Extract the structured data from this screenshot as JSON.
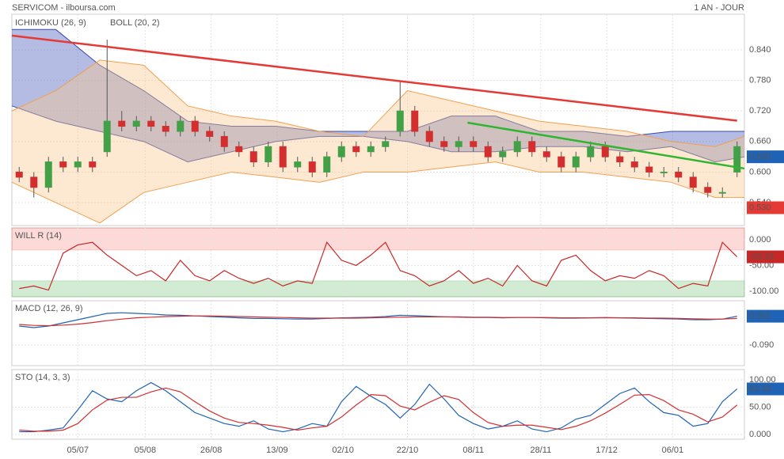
{
  "header": {
    "title": "SERVICOM - ilboursa.com",
    "period": "1 AN - JOUR"
  },
  "chart_data": [
    {
      "type": "candlestick",
      "open": [
        0.6,
        0.59,
        0.57,
        0.62,
        0.61,
        0.62,
        0.64,
        0.7,
        0.69,
        0.7,
        0.69,
        0.68,
        0.7,
        0.68,
        0.67,
        0.65,
        0.64,
        0.62,
        0.65,
        0.61,
        0.62,
        0.6,
        0.63,
        0.65,
        0.64,
        0.65,
        0.68,
        0.72,
        0.68,
        0.66,
        0.65,
        0.66,
        0.65,
        0.63,
        0.64,
        0.66,
        0.64,
        0.63,
        0.61,
        0.63,
        0.65,
        0.63,
        0.62,
        0.61,
        0.6,
        0.6,
        0.59,
        0.57,
        0.56,
        0.6
      ],
      "high": [
        0.61,
        0.6,
        0.63,
        0.63,
        0.63,
        0.63,
        0.86,
        0.72,
        0.71,
        0.71,
        0.7,
        0.71,
        0.71,
        0.69,
        0.68,
        0.66,
        0.65,
        0.66,
        0.66,
        0.63,
        0.63,
        0.64,
        0.66,
        0.66,
        0.66,
        0.67,
        0.78,
        0.73,
        0.69,
        0.67,
        0.67,
        0.67,
        0.66,
        0.65,
        0.67,
        0.67,
        0.65,
        0.64,
        0.64,
        0.66,
        0.66,
        0.64,
        0.63,
        0.62,
        0.61,
        0.61,
        0.6,
        0.58,
        0.57,
        0.66
      ],
      "low": [
        0.58,
        0.55,
        0.56,
        0.6,
        0.6,
        0.6,
        0.63,
        0.68,
        0.68,
        0.68,
        0.67,
        0.67,
        0.67,
        0.66,
        0.64,
        0.63,
        0.61,
        0.61,
        0.6,
        0.6,
        0.59,
        0.59,
        0.62,
        0.63,
        0.63,
        0.64,
        0.67,
        0.67,
        0.65,
        0.64,
        0.64,
        0.64,
        0.62,
        0.62,
        0.63,
        0.63,
        0.62,
        0.6,
        0.6,
        0.62,
        0.62,
        0.61,
        0.6,
        0.59,
        0.59,
        0.58,
        0.56,
        0.55,
        0.55,
        0.59
      ],
      "close": [
        0.59,
        0.57,
        0.62,
        0.61,
        0.62,
        0.61,
        0.7,
        0.69,
        0.7,
        0.69,
        0.68,
        0.7,
        0.68,
        0.67,
        0.65,
        0.64,
        0.62,
        0.65,
        0.61,
        0.62,
        0.6,
        0.63,
        0.65,
        0.64,
        0.65,
        0.66,
        0.72,
        0.68,
        0.66,
        0.65,
        0.66,
        0.65,
        0.63,
        0.64,
        0.66,
        0.64,
        0.63,
        0.61,
        0.63,
        0.65,
        0.63,
        0.62,
        0.61,
        0.6,
        0.6,
        0.59,
        0.57,
        0.56,
        0.56,
        0.65
      ],
      "up_color": "#43a047",
      "down_color": "#d32f2f",
      "overlay_x": [
        0,
        3,
        6,
        9,
        12,
        15,
        18,
        21,
        24,
        27,
        30,
        33,
        36,
        39,
        42,
        45,
        48,
        50
      ],
      "overlays": [
        {
          "name": "ICHIMOKU (26, 9)",
          "color": "#3949ab",
          "fill": "rgba(92,107,192,0.45)",
          "upper": [
            0.88,
            0.88,
            0.81,
            0.76,
            0.7,
            0.69,
            0.69,
            0.68,
            0.68,
            0.68,
            0.71,
            0.71,
            0.68,
            0.68,
            0.67,
            0.68,
            0.68,
            0.68
          ],
          "lower": [
            0.73,
            0.7,
            0.68,
            0.66,
            0.62,
            0.64,
            0.66,
            0.67,
            0.67,
            0.66,
            0.64,
            0.64,
            0.65,
            0.65,
            0.64,
            0.65,
            0.62,
            0.63
          ]
        },
        {
          "name": "BOLL (20, 2)",
          "color": "#f0a050",
          "fill": "rgba(250,200,140,0.4)",
          "upper": [
            0.72,
            0.76,
            0.82,
            0.81,
            0.73,
            0.71,
            0.7,
            0.68,
            0.67,
            0.76,
            0.74,
            0.72,
            0.7,
            0.69,
            0.68,
            0.66,
            0.65,
            0.67
          ],
          "lower": [
            0.58,
            0.54,
            0.5,
            0.56,
            0.58,
            0.6,
            0.59,
            0.58,
            0.6,
            0.6,
            0.61,
            0.62,
            0.6,
            0.6,
            0.59,
            0.58,
            0.55,
            0.55
          ]
        }
      ],
      "trendlines": [
        {
          "color": "#e53935",
          "points": [
            [
              0,
              0.868
            ],
            [
              49.5,
              0.701
            ]
          ]
        },
        {
          "color": "#2fb52f",
          "points": [
            [
              31.1,
              0.697
            ],
            [
              50,
              0.607
            ]
          ]
        }
      ],
      "markers": [
        {
          "value": 0.63,
          "label": "0.630",
          "color": "#1e63b5"
        },
        {
          "value": 0.53,
          "label": "0.530",
          "color": "#e53935"
        }
      ],
      "ylim": [
        0.495,
        0.91
      ],
      "yticks": [
        {
          "value": 0.84,
          "label": "0.840"
        },
        {
          "value": 0.78,
          "label": "0.780"
        },
        {
          "value": 0.72,
          "label": "0.720"
        },
        {
          "value": 0.66,
          "label": "0.660"
        },
        {
          "value": 0.6,
          "label": "0.600"
        },
        {
          "value": 0.54,
          "label": "0.540"
        }
      ],
      "grid": true
    },
    {
      "type": "line",
      "title": "WILL R (14)",
      "title_color": "#c62828",
      "zones": [
        {
          "min": -20,
          "color": "rgba(244,67,54,0.2)"
        },
        {
          "max": -80,
          "color": "rgba(76,175,80,0.25)"
        }
      ],
      "series": [
        {
          "color": "#c62828",
          "values": [
            -95,
            -90,
            -98,
            -26,
            -10,
            -5,
            -30,
            -50,
            -70,
            -60,
            -80,
            -40,
            -70,
            -80,
            -60,
            -75,
            -85,
            -75,
            -90,
            -80,
            -85,
            -5,
            -40,
            -50,
            -30,
            -5,
            -60,
            -70,
            -90,
            -80,
            -60,
            -85,
            -75,
            -90,
            -50,
            -80,
            -90,
            -40,
            -30,
            -60,
            -80,
            -70,
            -75,
            -60,
            -70,
            -95,
            -85,
            -90,
            -5,
            -33.33
          ]
        }
      ],
      "markers": [
        {
          "value": -33.33,
          "color": "#c62828"
        }
      ],
      "ylim": [
        -111,
        23
      ],
      "yticks": [
        {
          "value": 0,
          "label": "0.000"
        },
        {
          "value": -50,
          "label": "-50.00"
        },
        {
          "value": -100,
          "label": "-100.00"
        }
      ],
      "grid": true
    },
    {
      "type": "line",
      "title": "MACD (12, 26, 9)",
      "title_color": "#1e63b5",
      "series": [
        {
          "color": "#1e63b5",
          "values": [
            -0.03,
            -0.035,
            -0.03,
            -0.02,
            -0.01,
            0.0,
            0.01,
            0.012,
            0.01,
            0.008,
            0.005,
            0.004,
            0.002,
            0.0,
            -0.002,
            -0.004,
            -0.006,
            -0.006,
            -0.007,
            -0.008,
            -0.008,
            -0.006,
            -0.004,
            -0.003,
            -0.002,
            0.0,
            0.004,
            0.003,
            0.001,
            -0.001,
            -0.002,
            -0.003,
            -0.003,
            -0.004,
            -0.003,
            -0.003,
            -0.004,
            -0.005,
            -0.005,
            -0.004,
            -0.003,
            -0.004,
            -0.005,
            -0.006,
            -0.007,
            -0.008,
            -0.01,
            -0.01,
            -0.008,
            0.001
          ]
        },
        {
          "color": "#d32f2f",
          "values": [
            -0.025,
            -0.028,
            -0.029,
            -0.027,
            -0.024,
            -0.019,
            -0.013,
            -0.008,
            -0.004,
            -0.002,
            0.0,
            0.001,
            0.002,
            0.002,
            0.001,
            0.0,
            -0.001,
            -0.002,
            -0.003,
            -0.004,
            -0.005,
            -0.005,
            -0.005,
            -0.005,
            -0.004,
            -0.003,
            -0.002,
            -0.001,
            -0.001,
            -0.001,
            -0.001,
            -0.002,
            -0.002,
            -0.003,
            -0.003,
            -0.003,
            -0.003,
            -0.004,
            -0.004,
            -0.004,
            -0.004,
            -0.004,
            -0.004,
            -0.005,
            -0.005,
            -0.006,
            -0.007,
            -0.008,
            -0.008,
            -0.006
          ]
        }
      ],
      "markers": [
        {
          "value": 0.001,
          "label": "0.001",
          "color": "#1e63b5"
        }
      ],
      "ylim": [
        -0.155,
        0.05
      ],
      "yticks": [
        {
          "value": -0.09,
          "label": "-0.090"
        }
      ],
      "grid": true
    },
    {
      "type": "line",
      "title": "STO (14, 3, 3)",
      "title_color": "#1e63b5",
      "series": [
        {
          "color": "#1e63b5",
          "values": [
            5,
            5,
            8,
            12,
            45,
            80,
            65,
            60,
            80,
            95,
            80,
            60,
            40,
            30,
            20,
            15,
            25,
            10,
            5,
            10,
            20,
            15,
            60,
            88,
            70,
            55,
            30,
            55,
            92,
            65,
            35,
            20,
            10,
            15,
            25,
            10,
            5,
            12,
            28,
            35,
            55,
            75,
            85,
            60,
            40,
            35,
            15,
            20,
            60,
            83.33
          ]
        },
        {
          "color": "#d32f2f",
          "values": [
            8,
            6,
            6,
            8,
            20,
            45,
            63,
            68,
            68,
            78,
            85,
            78,
            60,
            43,
            30,
            22,
            20,
            17,
            13,
            8,
            12,
            15,
            32,
            54,
            73,
            71,
            52,
            45,
            59,
            71,
            64,
            40,
            22,
            15,
            17,
            17,
            13,
            9,
            15,
            25,
            39,
            55,
            72,
            73,
            62,
            45,
            37,
            23,
            32,
            54
          ]
        }
      ],
      "markers": [
        {
          "value": 83.33,
          "color": "#1e63b5"
        }
      ],
      "ylim": [
        -8.7,
        118.8
      ],
      "yticks": [
        {
          "value": 100,
          "label": "100.00"
        },
        {
          "value": 50,
          "label": "50.00"
        },
        {
          "value": 0,
          "label": "0.000"
        }
      ],
      "xlim": [
        0,
        50
      ],
      "xticks": [
        {
          "value": 4.5,
          "label": "05/07"
        },
        {
          "value": 9.1,
          "label": "05/08"
        },
        {
          "value": 13.6,
          "label": "26/08"
        },
        {
          "value": 18.1,
          "label": "13/09"
        },
        {
          "value": 22.6,
          "label": "02/10"
        },
        {
          "value": 27,
          "label": "22/10"
        },
        {
          "value": 31.5,
          "label": "08/11"
        },
        {
          "value": 36.1,
          "label": "28/11"
        },
        {
          "value": 40.6,
          "label": "17/12"
        },
        {
          "value": 45.1,
          "label": "06/01"
        }
      ],
      "grid": true
    }
  ]
}
